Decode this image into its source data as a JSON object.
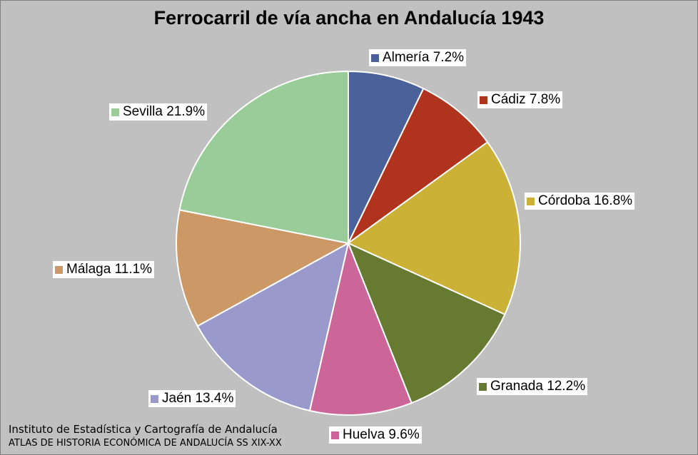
{
  "chart_data": {
    "type": "pie",
    "title": "Ferrocarril de vía ancha en Andalucía 1943",
    "slices": [
      {
        "name": "Almería",
        "value": 7.2,
        "label": "Almería 7.2%",
        "color": "#4a6299"
      },
      {
        "name": "Cádiz",
        "value": 7.8,
        "label": "Cádiz 7.8%",
        "color": "#b0331d"
      },
      {
        "name": "Córdoba",
        "value": 16.8,
        "label": "Córdoba 16.8%",
        "color": "#cbb135"
      },
      {
        "name": "Granada",
        "value": 12.2,
        "label": "Granada 12.2%",
        "color": "#667b31"
      },
      {
        "name": "Huelva",
        "value": 9.6,
        "label": "Huelva 9.6%",
        "color": "#cc6699"
      },
      {
        "name": "Jaén",
        "value": 13.4,
        "label": "Jaén 13.4%",
        "color": "#9999cc"
      },
      {
        "name": "Málaga",
        "value": 11.1,
        "label": "Málaga 11.1%",
        "color": "#cc9966"
      },
      {
        "name": "Sevilla",
        "value": 21.9,
        "label": "Sevilla 21.9%",
        "color": "#99cc99"
      }
    ]
  },
  "source": {
    "line1": "Instituto de Estadística y Cartografía de Andalucía",
    "line2": "ATLAS DE HISTORIA ECONÓMICA DE ANDALUCÍA SS XIX-XX"
  }
}
